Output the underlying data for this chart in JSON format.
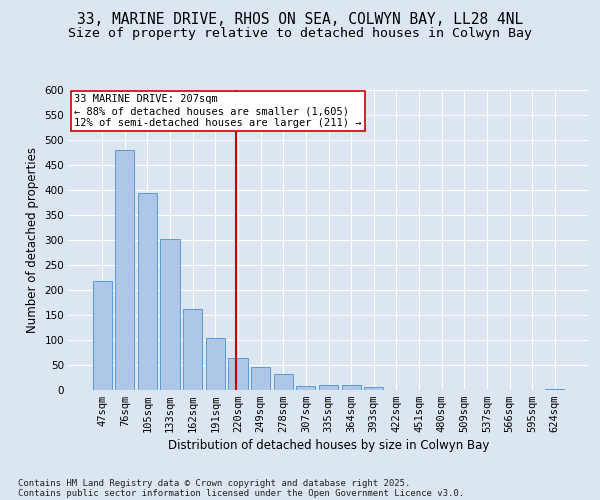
{
  "title_line1": "33, MARINE DRIVE, RHOS ON SEA, COLWYN BAY, LL28 4NL",
  "title_line2": "Size of property relative to detached houses in Colwyn Bay",
  "xlabel": "Distribution of detached houses by size in Colwyn Bay",
  "ylabel": "Number of detached properties",
  "categories": [
    "47sqm",
    "76sqm",
    "105sqm",
    "133sqm",
    "162sqm",
    "191sqm",
    "220sqm",
    "249sqm",
    "278sqm",
    "307sqm",
    "335sqm",
    "364sqm",
    "393sqm",
    "422sqm",
    "451sqm",
    "480sqm",
    "509sqm",
    "537sqm",
    "566sqm",
    "595sqm",
    "624sqm"
  ],
  "values": [
    218,
    480,
    395,
    303,
    163,
    105,
    64,
    47,
    32,
    8,
    10,
    10,
    6,
    1,
    1,
    1,
    1,
    1,
    1,
    1,
    3
  ],
  "bar_color": "#aec6e8",
  "bar_edge_color": "#5b9bd5",
  "vline_x": 5.9,
  "vline_color": "#cc0000",
  "annotation_text": "33 MARINE DRIVE: 207sqm\n← 88% of detached houses are smaller (1,605)\n12% of semi-detached houses are larger (211) →",
  "annotation_box_color": "#ffffff",
  "annotation_box_edge": "#cc0000",
  "ylim": [
    0,
    600
  ],
  "yticks": [
    0,
    50,
    100,
    150,
    200,
    250,
    300,
    350,
    400,
    450,
    500,
    550,
    600
  ],
  "background_color": "#dce6f0",
  "fig_background_color": "#dce6f0",
  "footer_line1": "Contains HM Land Registry data © Crown copyright and database right 2025.",
  "footer_line2": "Contains public sector information licensed under the Open Government Licence v3.0.",
  "title_fontsize": 10.5,
  "subtitle_fontsize": 9.5,
  "axis_label_fontsize": 8.5,
  "tick_fontsize": 7.5,
  "annotation_fontsize": 7.5,
  "footer_fontsize": 6.5
}
